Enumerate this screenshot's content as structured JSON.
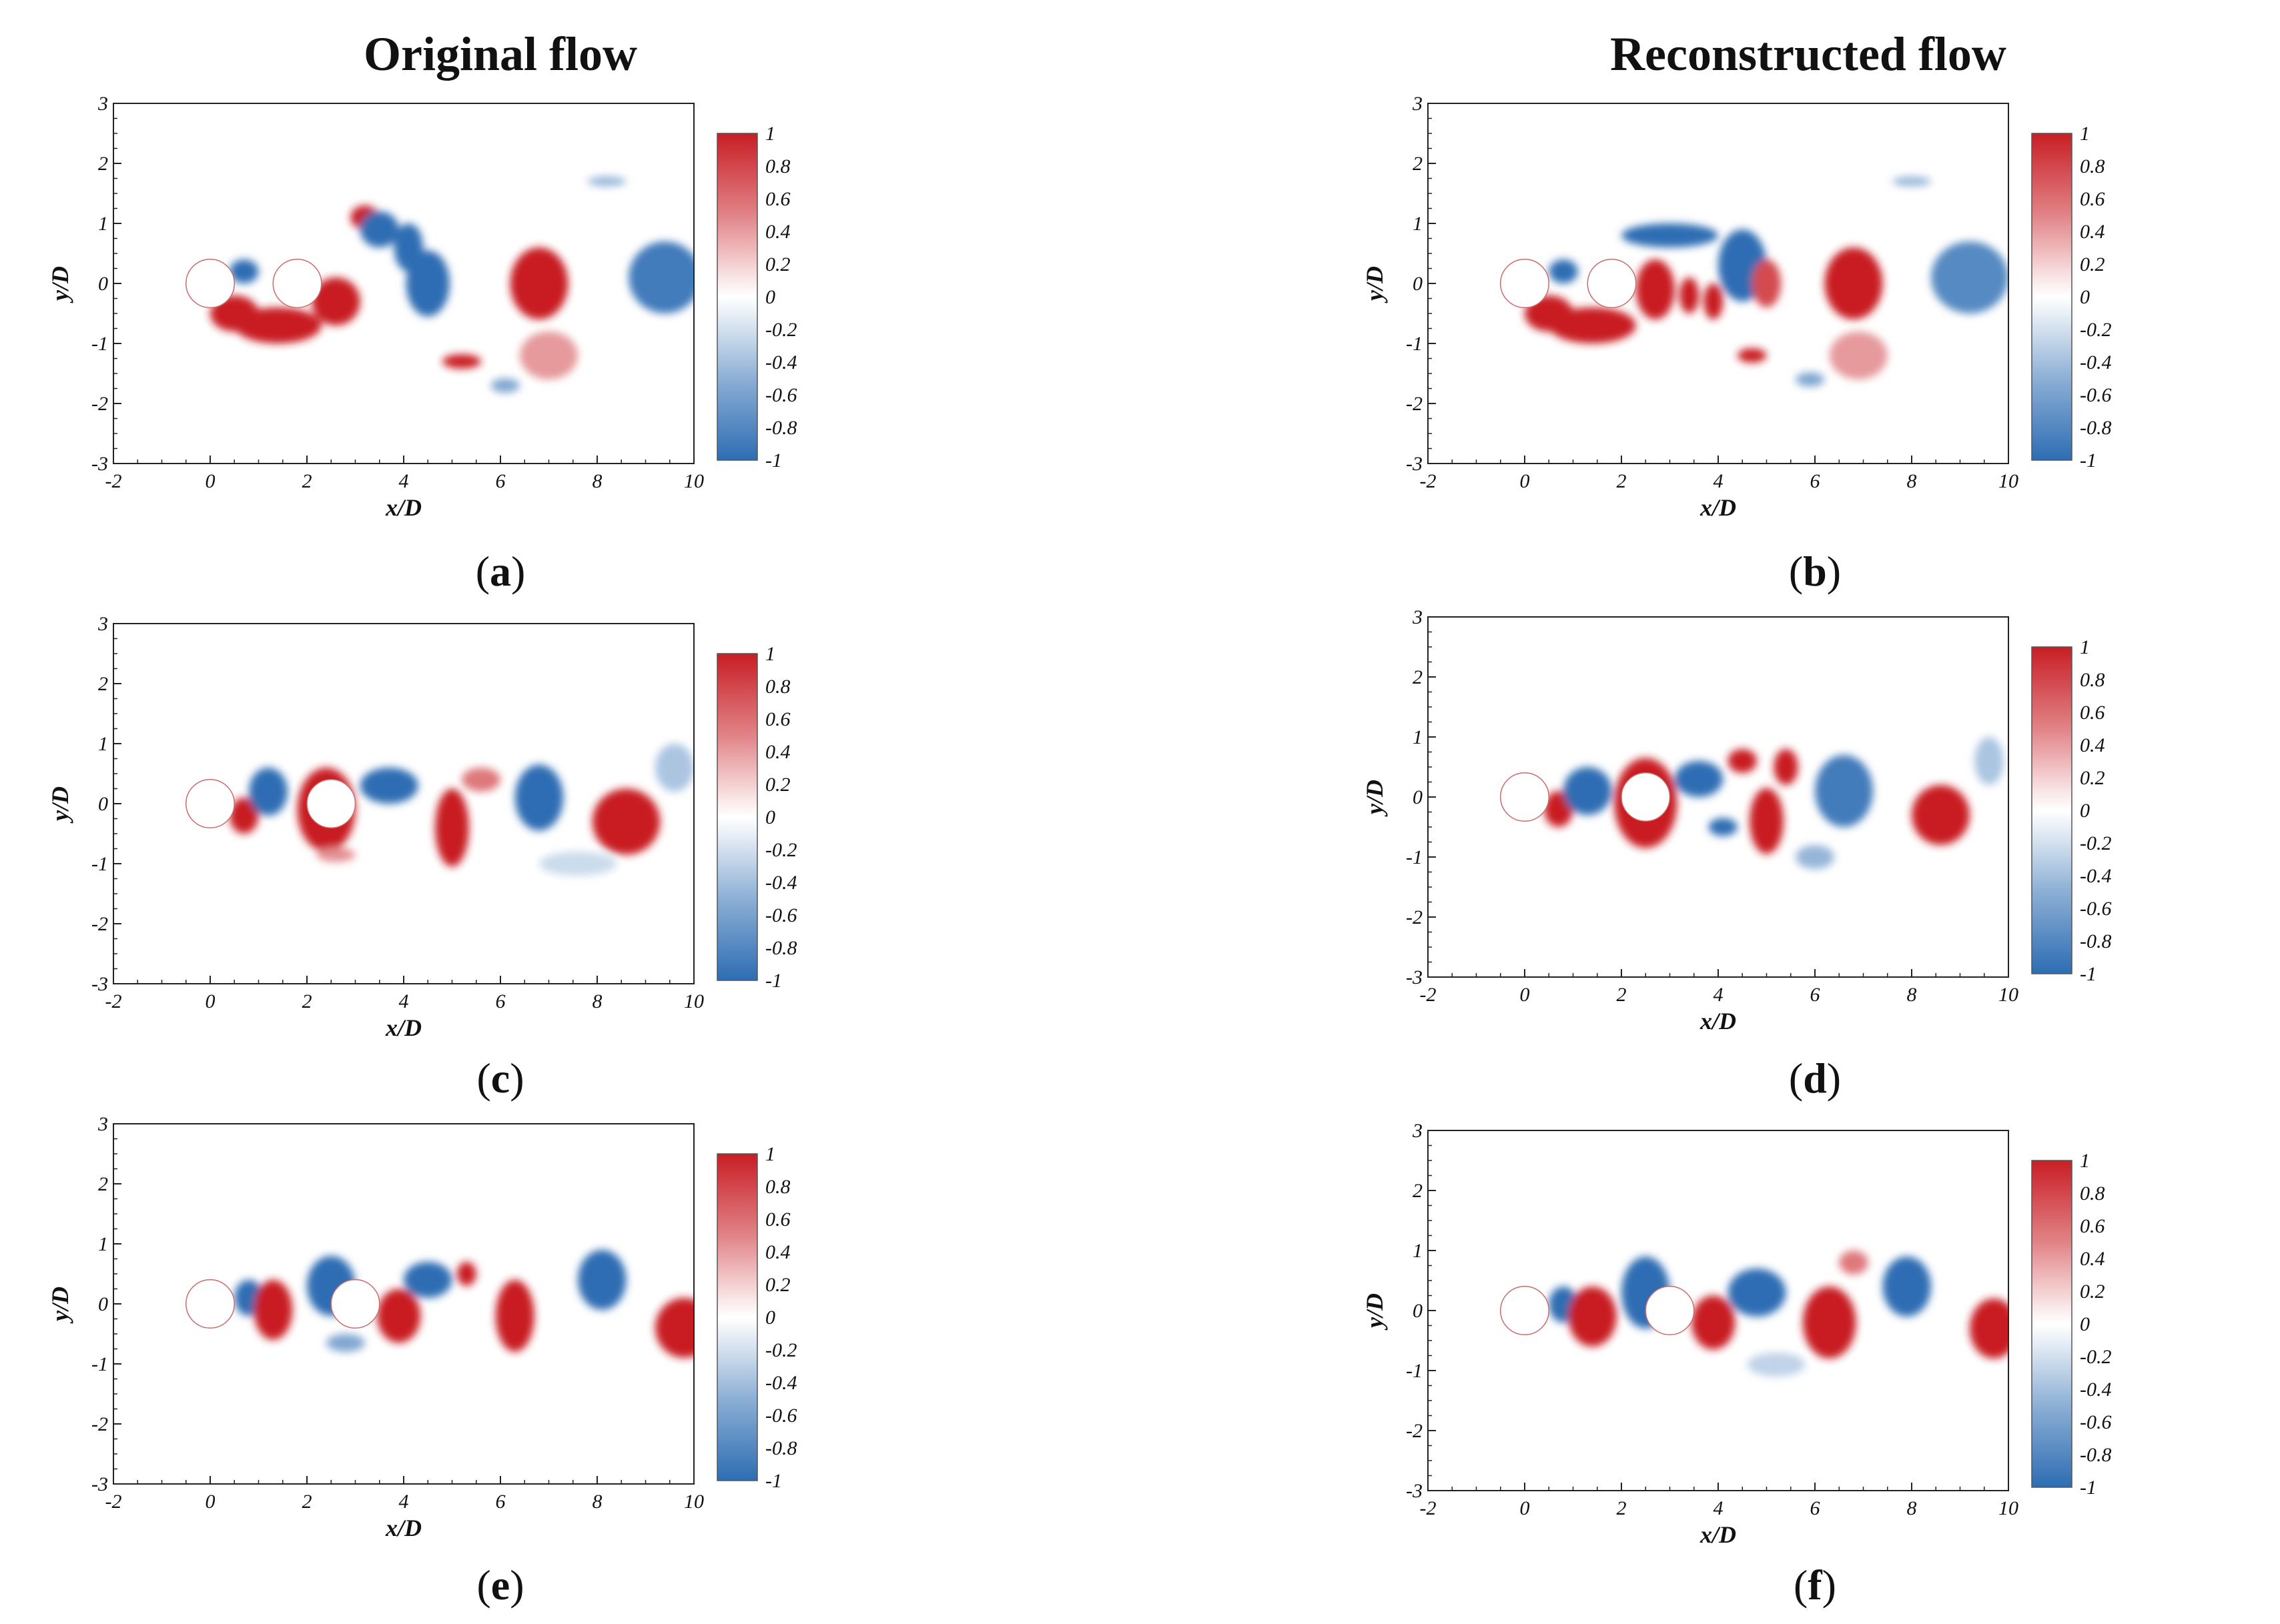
{
  "figure": {
    "column_titles": [
      "Original flow",
      "Reconstructed flow"
    ]
  },
  "colors": {
    "positive": "#c81e24",
    "negative": "#2d6db3",
    "cylinder": "#ffffff",
    "frame": "#222222"
  },
  "chart_data": [
    {
      "id": "a",
      "type": "heatmap",
      "caption_open": "(",
      "caption_letter": "a",
      "caption_close": ")",
      "xlabel": "x/D",
      "ylabel": "y/D",
      "xlim": [
        -2,
        10
      ],
      "ylim": [
        -3,
        3
      ],
      "xticks": [
        "-2",
        "0",
        "2",
        "4",
        "6",
        "8",
        "10"
      ],
      "yticks": [
        "-3",
        "-2",
        "-1",
        "0",
        "1",
        "2",
        "3"
      ],
      "colorbar": {
        "min": -1,
        "max": 1,
        "ticks": [
          "1",
          "0.8",
          "0.6",
          "0.4",
          "0.2",
          "0",
          "-0.2",
          "-0.4",
          "-0.6",
          "-0.8",
          "-1"
        ]
      },
      "cylinders": [
        {
          "x": 0,
          "y": 0
        },
        {
          "x": 1.8,
          "y": 0
        }
      ],
      "vortices": [
        {
          "x": 0.5,
          "y": -0.5,
          "rx": 0.5,
          "ry": 0.3,
          "v": 1
        },
        {
          "x": 1.4,
          "y": -0.7,
          "rx": 0.9,
          "ry": 0.3,
          "v": 1
        },
        {
          "x": 2.6,
          "y": -0.3,
          "rx": 0.5,
          "ry": 0.4,
          "v": 1
        },
        {
          "x": 3.2,
          "y": 1.1,
          "rx": 0.3,
          "ry": 0.2,
          "v": 1
        },
        {
          "x": 0.7,
          "y": 0.2,
          "rx": 0.3,
          "ry": 0.2,
          "v": -1
        },
        {
          "x": 3.5,
          "y": 0.9,
          "rx": 0.4,
          "ry": 0.3,
          "v": -1
        },
        {
          "x": 4.1,
          "y": 0.6,
          "rx": 0.3,
          "ry": 0.4,
          "v": -1
        },
        {
          "x": 4.5,
          "y": 0.0,
          "rx": 0.45,
          "ry": 0.55,
          "v": -1
        },
        {
          "x": 5.2,
          "y": -1.3,
          "rx": 0.4,
          "ry": 0.12,
          "v": 1
        },
        {
          "x": 6.8,
          "y": 0.0,
          "rx": 0.6,
          "ry": 0.6,
          "v": 1
        },
        {
          "x": 7.0,
          "y": -1.2,
          "rx": 0.6,
          "ry": 0.4,
          "v": 0.45
        },
        {
          "x": 6.1,
          "y": -1.7,
          "rx": 0.3,
          "ry": 0.12,
          "v": -0.6
        },
        {
          "x": 8.2,
          "y": 1.7,
          "rx": 0.4,
          "ry": 0.08,
          "v": -0.5
        },
        {
          "x": 9.4,
          "y": 0.1,
          "rx": 0.75,
          "ry": 0.6,
          "v": -0.9
        }
      ]
    },
    {
      "id": "b",
      "type": "heatmap",
      "caption_open": "(",
      "caption_letter": "b",
      "caption_close": ")",
      "xlabel": "x/D",
      "ylabel": "y/D",
      "xlim": [
        -2,
        10
      ],
      "ylim": [
        -3,
        3
      ],
      "xticks": [
        "-2",
        "0",
        "2",
        "4",
        "6",
        "8",
        "10"
      ],
      "yticks": [
        "-3",
        "-2",
        "-1",
        "0",
        "1",
        "2",
        "3"
      ],
      "colorbar": {
        "min": -1,
        "max": 1,
        "ticks": [
          "1",
          "0.8",
          "0.6",
          "0.4",
          "0.2",
          "0",
          "-0.2",
          "-0.4",
          "-0.6",
          "-0.8",
          "-1"
        ]
      },
      "cylinders": [
        {
          "x": 0,
          "y": 0
        },
        {
          "x": 1.8,
          "y": 0
        }
      ],
      "vortices": [
        {
          "x": 0.5,
          "y": -0.5,
          "rx": 0.5,
          "ry": 0.3,
          "v": 1
        },
        {
          "x": 1.4,
          "y": -0.7,
          "rx": 0.9,
          "ry": 0.3,
          "v": 1
        },
        {
          "x": 2.7,
          "y": -0.1,
          "rx": 0.4,
          "ry": 0.5,
          "v": 1
        },
        {
          "x": 3.4,
          "y": -0.2,
          "rx": 0.2,
          "ry": 0.3,
          "v": 1
        },
        {
          "x": 3.9,
          "y": -0.3,
          "rx": 0.2,
          "ry": 0.3,
          "v": 1
        },
        {
          "x": 0.8,
          "y": 0.2,
          "rx": 0.3,
          "ry": 0.2,
          "v": -1
        },
        {
          "x": 3.0,
          "y": 0.8,
          "rx": 1.0,
          "ry": 0.2,
          "v": -1
        },
        {
          "x": 4.5,
          "y": 0.3,
          "rx": 0.5,
          "ry": 0.6,
          "v": -1
        },
        {
          "x": 5.0,
          "y": 0.0,
          "rx": 0.3,
          "ry": 0.4,
          "v": 0.8
        },
        {
          "x": 4.7,
          "y": -1.2,
          "rx": 0.3,
          "ry": 0.12,
          "v": 1
        },
        {
          "x": 6.8,
          "y": 0.0,
          "rx": 0.6,
          "ry": 0.6,
          "v": 1
        },
        {
          "x": 6.9,
          "y": -1.2,
          "rx": 0.6,
          "ry": 0.4,
          "v": 0.45
        },
        {
          "x": 5.9,
          "y": -1.6,
          "rx": 0.3,
          "ry": 0.12,
          "v": -0.6
        },
        {
          "x": 8.0,
          "y": 1.7,
          "rx": 0.4,
          "ry": 0.08,
          "v": -0.5
        },
        {
          "x": 9.2,
          "y": 0.1,
          "rx": 0.8,
          "ry": 0.6,
          "v": -0.8
        }
      ]
    },
    {
      "id": "c",
      "type": "heatmap",
      "caption_open": "(",
      "caption_letter": "c",
      "caption_close": ")",
      "xlabel": "x/D",
      "ylabel": "y/D",
      "xlim": [
        -2,
        10
      ],
      "ylim": [
        -3,
        3
      ],
      "xticks": [
        "-2",
        "0",
        "2",
        "4",
        "6",
        "8",
        "10"
      ],
      "yticks": [
        "-3",
        "-2",
        "-1",
        "0",
        "1",
        "2",
        "3"
      ],
      "colorbar": {
        "min": -1,
        "max": 1,
        "ticks": [
          "1",
          "0.8",
          "0.6",
          "0.4",
          "0.2",
          "0",
          "-0.2",
          "-0.4",
          "-0.6",
          "-0.8",
          "-1"
        ]
      },
      "cylinders": [
        {
          "x": 0,
          "y": 0
        },
        {
          "x": 2.5,
          "y": 0
        }
      ],
      "vortices": [
        {
          "x": 0.7,
          "y": -0.2,
          "rx": 0.3,
          "ry": 0.3,
          "v": 1
        },
        {
          "x": 1.2,
          "y": 0.2,
          "rx": 0.4,
          "ry": 0.4,
          "v": -1
        },
        {
          "x": 2.4,
          "y": -0.1,
          "rx": 0.6,
          "ry": 0.7,
          "v": 1
        },
        {
          "x": 2.6,
          "y": -0.85,
          "rx": 0.4,
          "ry": 0.12,
          "v": 0.5
        },
        {
          "x": 3.7,
          "y": 0.3,
          "rx": 0.6,
          "ry": 0.3,
          "v": -1
        },
        {
          "x": 5.0,
          "y": -0.4,
          "rx": 0.35,
          "ry": 0.65,
          "v": 1
        },
        {
          "x": 5.6,
          "y": 0.4,
          "rx": 0.4,
          "ry": 0.2,
          "v": 0.6
        },
        {
          "x": 6.8,
          "y": 0.1,
          "rx": 0.5,
          "ry": 0.55,
          "v": -1
        },
        {
          "x": 8.6,
          "y": -0.3,
          "rx": 0.7,
          "ry": 0.55,
          "v": 1
        },
        {
          "x": 9.6,
          "y": 0.6,
          "rx": 0.4,
          "ry": 0.4,
          "v": -0.4
        },
        {
          "x": 7.6,
          "y": -1.0,
          "rx": 0.8,
          "ry": 0.2,
          "v": -0.25
        }
      ]
    },
    {
      "id": "d",
      "type": "heatmap",
      "caption_open": "(",
      "caption_letter": "d",
      "caption_close": ")",
      "xlabel": "x/D",
      "ylabel": "y/D",
      "xlim": [
        -2,
        10
      ],
      "ylim": [
        -3,
        3
      ],
      "xticks": [
        "-2",
        "0",
        "2",
        "4",
        "6",
        "8",
        "10"
      ],
      "yticks": [
        "-3",
        "-2",
        "-1",
        "0",
        "1",
        "2",
        "3"
      ],
      "colorbar": {
        "min": -1,
        "max": 1,
        "ticks": [
          "1",
          "0.8",
          "0.6",
          "0.4",
          "0.2",
          "0",
          "-0.2",
          "-0.4",
          "-0.6",
          "-0.8",
          "-1"
        ]
      },
      "cylinders": [
        {
          "x": 0,
          "y": 0
        },
        {
          "x": 2.5,
          "y": 0
        }
      ],
      "vortices": [
        {
          "x": 0.7,
          "y": -0.2,
          "rx": 0.3,
          "ry": 0.3,
          "v": 1
        },
        {
          "x": 1.3,
          "y": 0.1,
          "rx": 0.5,
          "ry": 0.4,
          "v": -1
        },
        {
          "x": 2.5,
          "y": -0.1,
          "rx": 0.65,
          "ry": 0.75,
          "v": 1
        },
        {
          "x": 3.6,
          "y": 0.3,
          "rx": 0.5,
          "ry": 0.3,
          "v": -1
        },
        {
          "x": 4.1,
          "y": -0.5,
          "rx": 0.3,
          "ry": 0.15,
          "v": -1
        },
        {
          "x": 4.5,
          "y": 0.6,
          "rx": 0.3,
          "ry": 0.2,
          "v": 1
        },
        {
          "x": 5.0,
          "y": -0.4,
          "rx": 0.35,
          "ry": 0.55,
          "v": 1
        },
        {
          "x": 5.4,
          "y": 0.5,
          "rx": 0.25,
          "ry": 0.3,
          "v": 1
        },
        {
          "x": 6.6,
          "y": 0.1,
          "rx": 0.6,
          "ry": 0.6,
          "v": -0.9
        },
        {
          "x": 6.0,
          "y": -1.0,
          "rx": 0.4,
          "ry": 0.2,
          "v": -0.5
        },
        {
          "x": 8.6,
          "y": -0.3,
          "rx": 0.6,
          "ry": 0.5,
          "v": 1
        },
        {
          "x": 9.6,
          "y": 0.6,
          "rx": 0.3,
          "ry": 0.4,
          "v": -0.4
        }
      ]
    },
    {
      "id": "e",
      "type": "heatmap",
      "caption_open": "(",
      "caption_letter": "e",
      "caption_close": ")",
      "xlabel": "x/D",
      "ylabel": "y/D",
      "xlim": [
        -2,
        10
      ],
      "ylim": [
        -3,
        3
      ],
      "xticks": [
        "-2",
        "0",
        "2",
        "4",
        "6",
        "8",
        "10"
      ],
      "yticks": [
        "-3",
        "-2",
        "-1",
        "0",
        "1",
        "2",
        "3"
      ],
      "colorbar": {
        "min": -1,
        "max": 1,
        "ticks": [
          "1",
          "0.8",
          "0.6",
          "0.4",
          "0.2",
          "0",
          "-0.2",
          "-0.4",
          "-0.6",
          "-0.8",
          "-1"
        ]
      },
      "cylinders": [
        {
          "x": 0,
          "y": 0
        },
        {
          "x": 3.0,
          "y": 0
        }
      ],
      "vortices": [
        {
          "x": 0.8,
          "y": 0.1,
          "rx": 0.3,
          "ry": 0.3,
          "v": -1
        },
        {
          "x": 1.3,
          "y": -0.1,
          "rx": 0.4,
          "ry": 0.5,
          "v": 1
        },
        {
          "x": 2.5,
          "y": 0.3,
          "rx": 0.5,
          "ry": 0.5,
          "v": -1
        },
        {
          "x": 2.8,
          "y": -0.65,
          "rx": 0.4,
          "ry": 0.15,
          "v": -0.6
        },
        {
          "x": 3.9,
          "y": -0.2,
          "rx": 0.45,
          "ry": 0.45,
          "v": 1
        },
        {
          "x": 4.5,
          "y": 0.4,
          "rx": 0.5,
          "ry": 0.3,
          "v": -1
        },
        {
          "x": 5.3,
          "y": 0.5,
          "rx": 0.2,
          "ry": 0.2,
          "v": 1
        },
        {
          "x": 6.3,
          "y": -0.2,
          "rx": 0.4,
          "ry": 0.6,
          "v": 1
        },
        {
          "x": 8.1,
          "y": 0.4,
          "rx": 0.5,
          "ry": 0.5,
          "v": -1
        },
        {
          "x": 9.8,
          "y": -0.4,
          "rx": 0.6,
          "ry": 0.5,
          "v": 1
        }
      ]
    },
    {
      "id": "f",
      "type": "heatmap",
      "caption_open": "(",
      "caption_letter": "f",
      "caption_close": ")",
      "xlabel": "x/D",
      "ylabel": "y/D",
      "xlim": [
        -2,
        10
      ],
      "ylim": [
        -3,
        3
      ],
      "xticks": [
        "-2",
        "0",
        "2",
        "4",
        "6",
        "8",
        "10"
      ],
      "yticks": [
        "-3",
        "-2",
        "-1",
        "0",
        "1",
        "2",
        "3"
      ],
      "colorbar": {
        "min": -1,
        "max": 1,
        "ticks": [
          "1",
          "0.8",
          "0.6",
          "0.4",
          "0.2",
          "0",
          "-0.2",
          "-0.4",
          "-0.6",
          "-0.8",
          "-1"
        ]
      },
      "cylinders": [
        {
          "x": 0,
          "y": 0
        },
        {
          "x": 3.0,
          "y": 0
        }
      ],
      "vortices": [
        {
          "x": 0.8,
          "y": 0.1,
          "rx": 0.3,
          "ry": 0.3,
          "v": -1
        },
        {
          "x": 1.4,
          "y": -0.1,
          "rx": 0.5,
          "ry": 0.5,
          "v": 1
        },
        {
          "x": 2.5,
          "y": 0.3,
          "rx": 0.5,
          "ry": 0.6,
          "v": -1
        },
        {
          "x": 3.9,
          "y": -0.2,
          "rx": 0.45,
          "ry": 0.45,
          "v": 1
        },
        {
          "x": 4.8,
          "y": 0.3,
          "rx": 0.6,
          "ry": 0.4,
          "v": -1
        },
        {
          "x": 6.3,
          "y": -0.2,
          "rx": 0.55,
          "ry": 0.6,
          "v": 1
        },
        {
          "x": 6.8,
          "y": 0.8,
          "rx": 0.3,
          "ry": 0.2,
          "v": 0.6
        },
        {
          "x": 7.9,
          "y": 0.4,
          "rx": 0.5,
          "ry": 0.5,
          "v": -1
        },
        {
          "x": 9.7,
          "y": -0.3,
          "rx": 0.5,
          "ry": 0.5,
          "v": 1
        },
        {
          "x": 5.2,
          "y": -0.9,
          "rx": 0.6,
          "ry": 0.2,
          "v": -0.3
        }
      ]
    }
  ]
}
